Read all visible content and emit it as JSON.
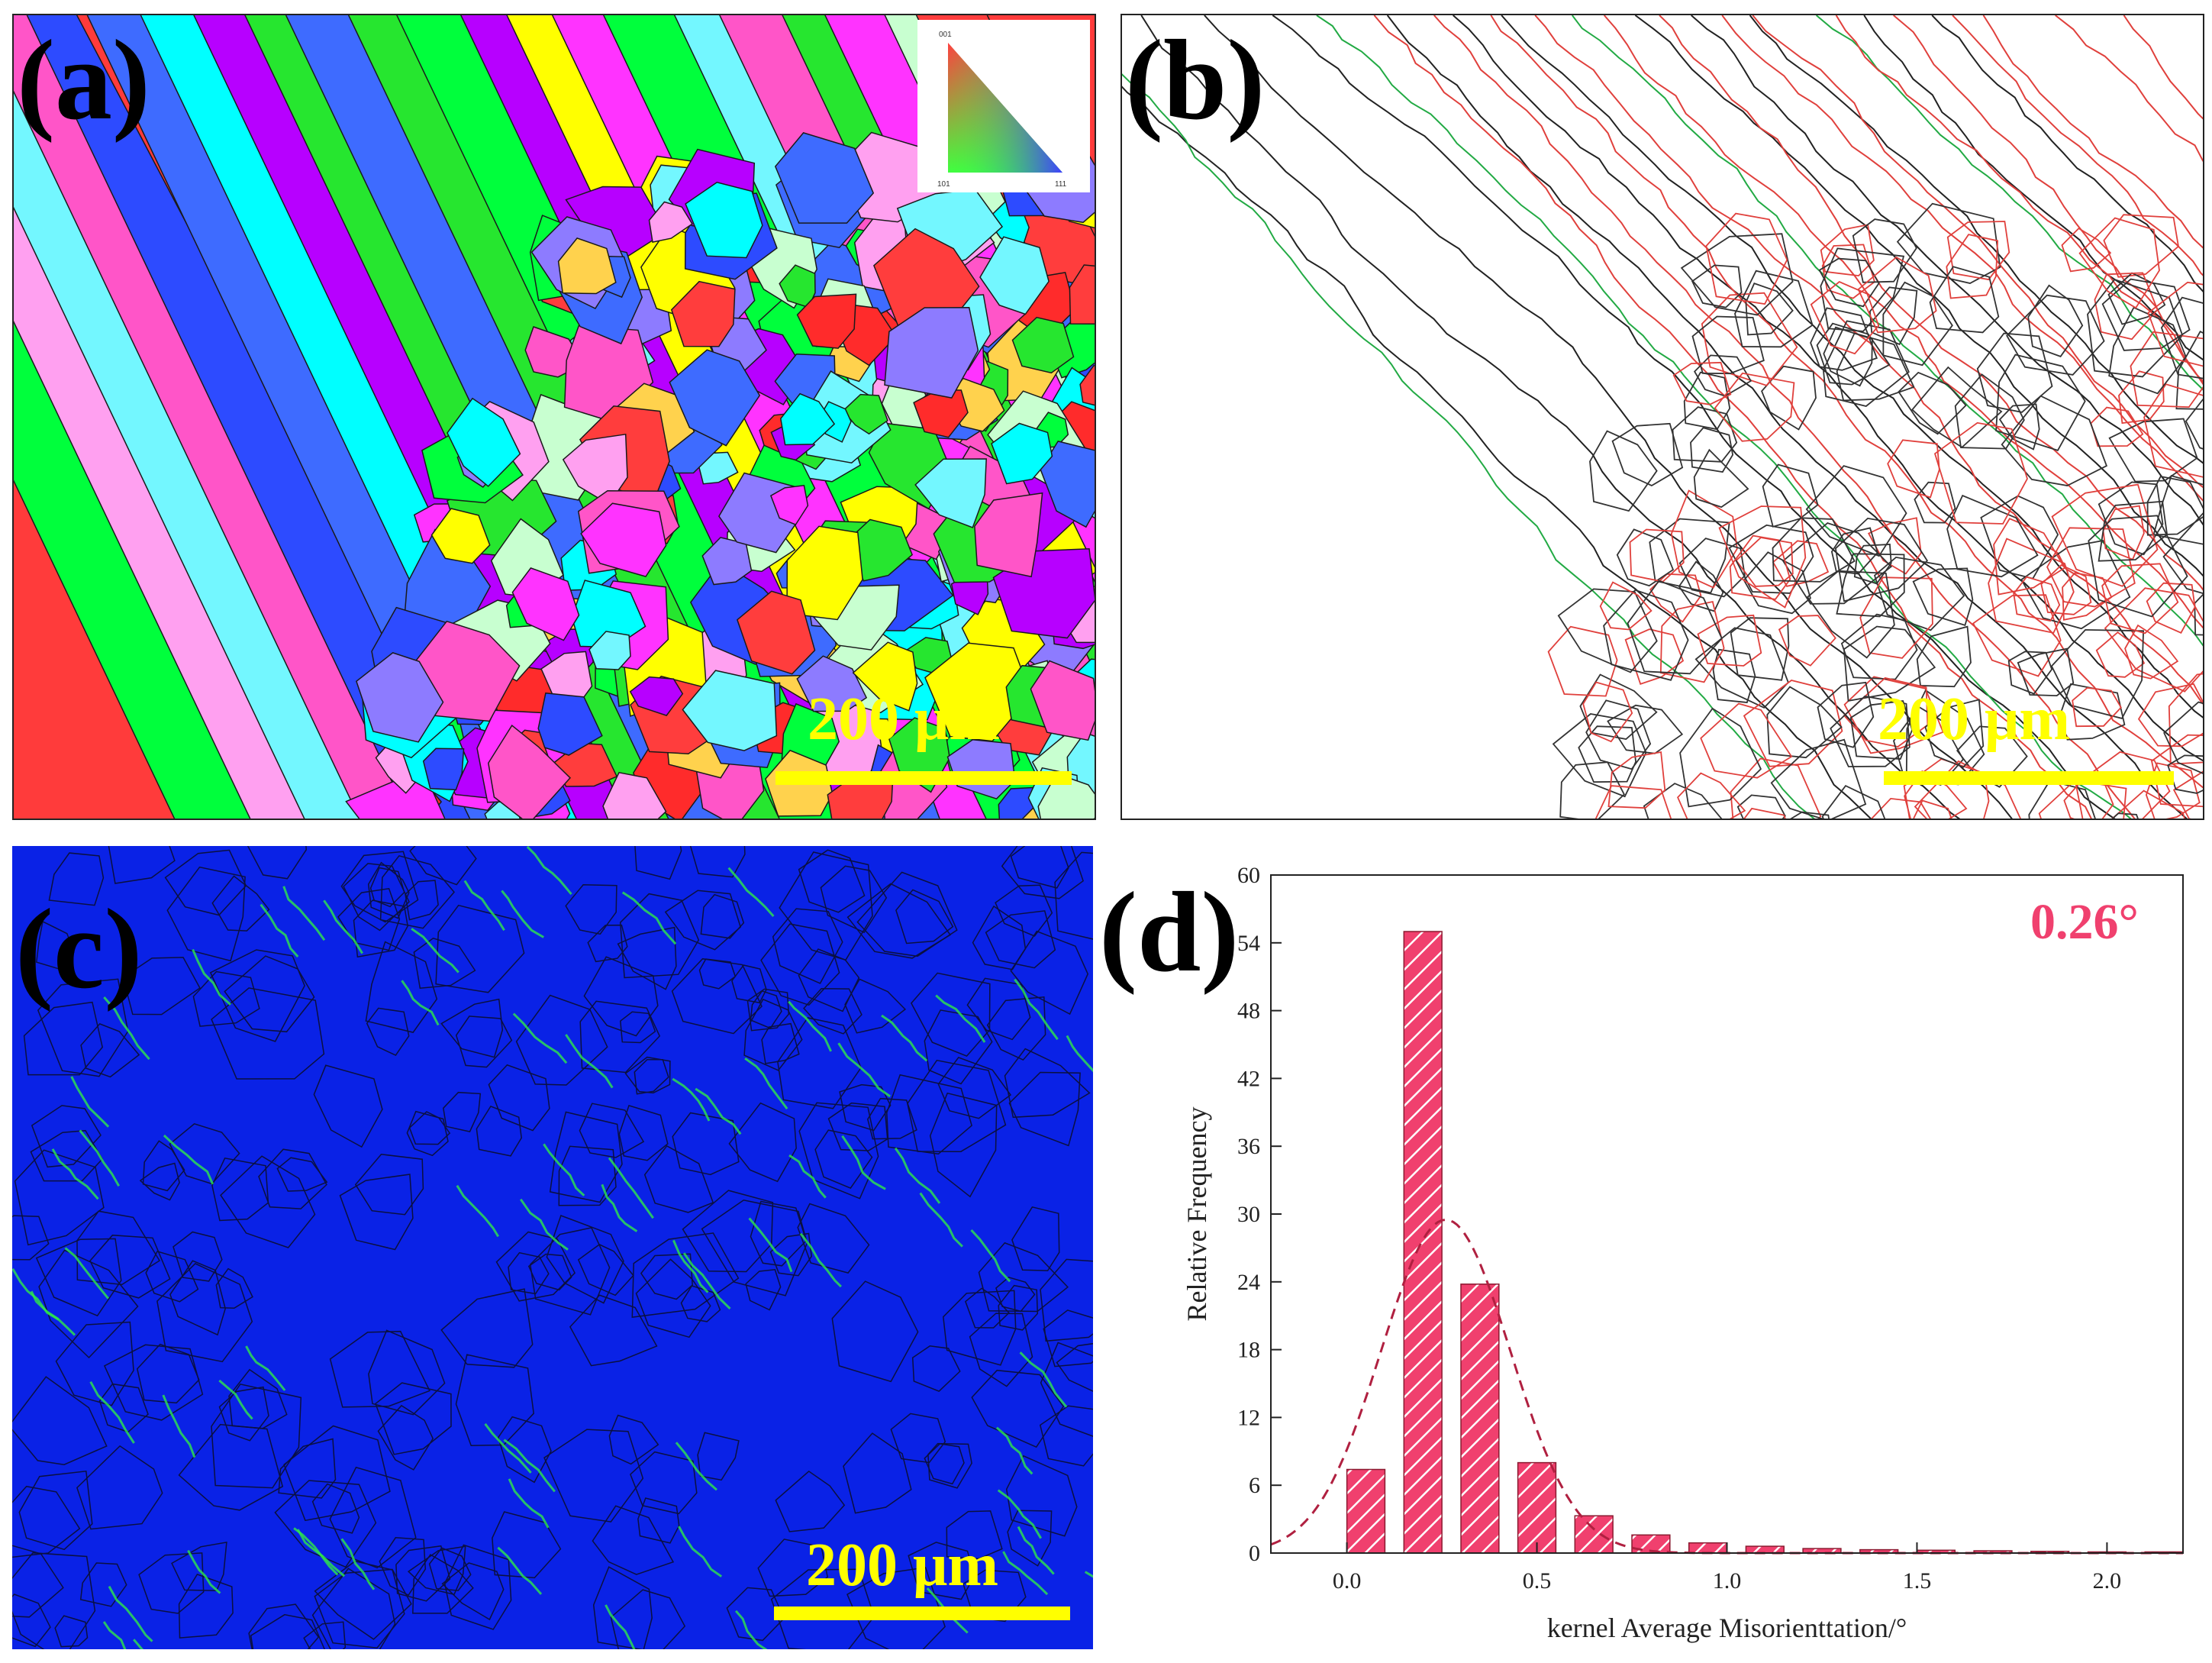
{
  "panels": {
    "a": {
      "label": "(a)",
      "scale_bar": "200 μm",
      "ipf_legend": {
        "top": "001",
        "left": "101",
        "right": "111"
      },
      "colors": [
        "#ff2b2b",
        "#ff3d3d",
        "#ffff00",
        "#00ff3c",
        "#26e62f",
        "#b700ff",
        "#ff33ff",
        "#2d4bff",
        "#3e6bff",
        "#00ffff",
        "#73f7ff",
        "#ff55c8",
        "#ffa0f0",
        "#c8ffd0",
        "#ffd24d",
        "#8d7bff"
      ]
    },
    "b": {
      "label": "(b)",
      "scale_bar": "200 μm"
    },
    "c": {
      "label": "(c)",
      "scale_bar": "200 μm"
    },
    "d": {
      "label": "(d)",
      "annotation": "0.26°"
    }
  },
  "chart_data": {
    "type": "bar",
    "xlabel": "kernel Average Misorienttation/°",
    "ylabel": "Relative Frequency",
    "xlim": [
      -0.2,
      2.2
    ],
    "ylim": [
      0,
      60
    ],
    "xticks": [
      "0.0",
      "0.5",
      "1.0",
      "1.5",
      "2.0"
    ],
    "yticks": [
      "0",
      "6",
      "12",
      "18",
      "24",
      "30",
      "36",
      "42",
      "48",
      "54",
      "60"
    ],
    "x": [
      0.05,
      0.2,
      0.35,
      0.5,
      0.65,
      0.8,
      0.95,
      1.1,
      1.25,
      1.4,
      1.55,
      1.7,
      1.85,
      2.0,
      2.15
    ],
    "values": [
      7.4,
      55.0,
      23.8,
      8.0,
      3.3,
      1.6,
      0.9,
      0.6,
      0.4,
      0.3,
      0.25,
      0.2,
      0.15,
      0.1,
      0.1
    ],
    "fit_curve": {
      "type": "normal",
      "mean": 0.26,
      "peak": 29.5,
      "sigma": 0.17
    },
    "bar_color": "#f0406e",
    "curve_color": "#b02040"
  }
}
